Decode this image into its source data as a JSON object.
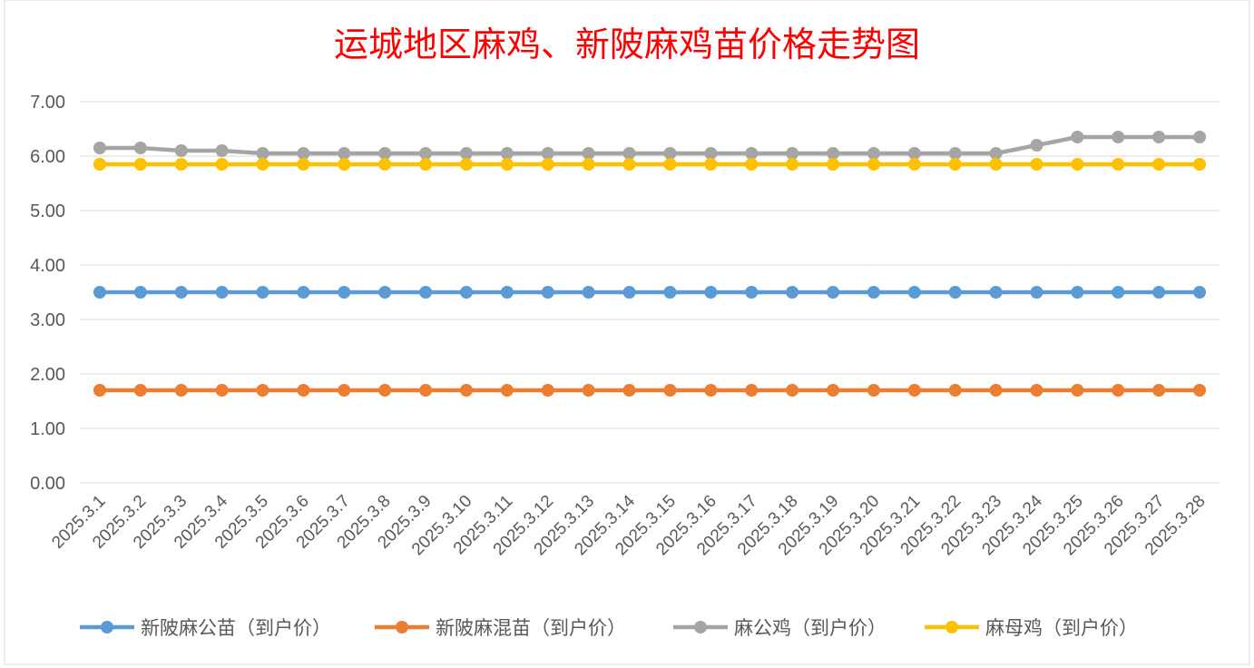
{
  "chart_data": {
    "type": "line",
    "title": "运城地区麻鸡、新陂麻鸡苗价格走势图",
    "title_color": "#FF0000",
    "categories": [
      "2025.3.1",
      "2025.3.2",
      "2025.3.3",
      "2025.3.4",
      "2025.3.5",
      "2025.3.6",
      "2025.3.7",
      "2025.3.8",
      "2025.3.9",
      "2025.3.10",
      "2025.3.11",
      "2025.3.12",
      "2025.3.13",
      "2025.3.14",
      "2025.3.15",
      "2025.3.16",
      "2025.3.17",
      "2025.3.18",
      "2025.3.19",
      "2025.3.20",
      "2025.3.21",
      "2025.3.22",
      "2025.3.23",
      "2025.3.24",
      "2025.3.25",
      "2025.3.26",
      "2025.3.27",
      "2025.3.28"
    ],
    "ylim": [
      0,
      7
    ],
    "yticks": [
      "0.00",
      "1.00",
      "2.00",
      "3.00",
      "4.00",
      "5.00",
      "6.00",
      "7.00"
    ],
    "grid": true,
    "legend": "bottom",
    "series": [
      {
        "name": "新陂麻公苗（到户价）",
        "color": "#5B9BD5",
        "values": [
          3.5,
          3.5,
          3.5,
          3.5,
          3.5,
          3.5,
          3.5,
          3.5,
          3.5,
          3.5,
          3.5,
          3.5,
          3.5,
          3.5,
          3.5,
          3.5,
          3.5,
          3.5,
          3.5,
          3.5,
          3.5,
          3.5,
          3.5,
          3.5,
          3.5,
          3.5,
          3.5,
          3.5
        ]
      },
      {
        "name": "新陂麻混苗（到户价）",
        "color": "#ED7D31",
        "values": [
          1.7,
          1.7,
          1.7,
          1.7,
          1.7,
          1.7,
          1.7,
          1.7,
          1.7,
          1.7,
          1.7,
          1.7,
          1.7,
          1.7,
          1.7,
          1.7,
          1.7,
          1.7,
          1.7,
          1.7,
          1.7,
          1.7,
          1.7,
          1.7,
          1.7,
          1.7,
          1.7,
          1.7
        ]
      },
      {
        "name": "麻公鸡（到户价）",
        "color": "#A5A5A5",
        "values": [
          6.15,
          6.15,
          6.1,
          6.1,
          6.05,
          6.05,
          6.05,
          6.05,
          6.05,
          6.05,
          6.05,
          6.05,
          6.05,
          6.05,
          6.05,
          6.05,
          6.05,
          6.05,
          6.05,
          6.05,
          6.05,
          6.05,
          6.05,
          6.2,
          6.35,
          6.35,
          6.35,
          6.35
        ]
      },
      {
        "name": "麻母鸡（到户价）",
        "color": "#FFC000",
        "values": [
          5.85,
          5.85,
          5.85,
          5.85,
          5.85,
          5.85,
          5.85,
          5.85,
          5.85,
          5.85,
          5.85,
          5.85,
          5.85,
          5.85,
          5.85,
          5.85,
          5.85,
          5.85,
          5.85,
          5.85,
          5.85,
          5.85,
          5.85,
          5.85,
          5.85,
          5.85,
          5.85,
          5.85
        ]
      }
    ]
  }
}
